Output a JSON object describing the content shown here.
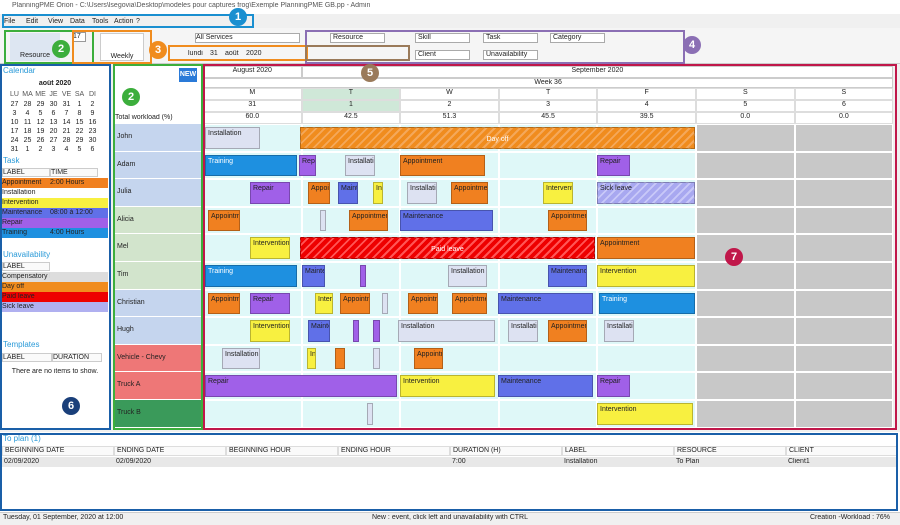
{
  "window": {
    "title": "PlanningPME Orion - C:\\Users\\lsegovia\\Desktop\\modeles pour captures frog\\Exemple PlanningPME GB.pp - Admin"
  },
  "menu": [
    "File",
    "Edit",
    "View",
    "Data",
    "Tools",
    "Action",
    "?"
  ],
  "toolbar": {
    "resource": "Resource",
    "weekly": "Weekly",
    "spin": "17",
    "services": "All Services",
    "date_day": "lundi",
    "date_num": "31",
    "date_month": "août",
    "date_year": "2020",
    "filters": [
      "Resource",
      "Skill",
      "Task",
      "Category",
      "Client",
      "Unavailability"
    ]
  },
  "callouts": [
    "1",
    "2",
    "2",
    "3",
    "4",
    "5",
    "6",
    "7"
  ],
  "calendar": {
    "title": "Calendar",
    "month": "août 2020",
    "days": [
      "LU",
      "MA",
      "ME",
      "JE",
      "VE",
      "SA",
      "DI"
    ],
    "weeks": [
      [
        27,
        28,
        29,
        30,
        31,
        1,
        2
      ],
      [
        3,
        4,
        5,
        6,
        7,
        8,
        9
      ],
      [
        10,
        11,
        12,
        13,
        14,
        15,
        16
      ],
      [
        17,
        18,
        19,
        20,
        21,
        22,
        23
      ],
      [
        24,
        25,
        26,
        27,
        28,
        29,
        30
      ],
      [
        31,
        1,
        2,
        3,
        4,
        5,
        6
      ]
    ]
  },
  "task_panel": {
    "title": "Task",
    "columns": [
      "LABEL",
      "TIME"
    ],
    "rows": [
      [
        "Appointment",
        "2:00 Hours"
      ],
      [
        "Installation"
      ],
      [
        "Intervention"
      ],
      [
        "Maintenance",
        "08:00 à 12:00"
      ],
      [
        "Repair"
      ],
      [
        "Training",
        "4:00 Hours"
      ]
    ]
  },
  "unavailability_panel": {
    "title": "Unavailability",
    "columns": [
      "LABEL"
    ],
    "rows": [
      "Compensatory leave",
      "Day off",
      "Paid leave",
      "Sick leave"
    ]
  },
  "templates_panel": {
    "title": "Templates",
    "columns": [
      "LABEL",
      "DURATION"
    ],
    "empty": "There are no items to show."
  },
  "planning": {
    "new": "NEW",
    "months": [
      "August 2020",
      "September 2020"
    ],
    "week": "Week 36",
    "day_letters": [
      "M",
      "T",
      "W",
      "T",
      "F",
      "S",
      "S"
    ],
    "day_numbers": [
      31,
      1,
      2,
      3,
      4,
      5,
      6
    ],
    "workload_label": "Total workload (%)",
    "workload": [
      "60.0",
      "42.5",
      "51.3",
      "45.5",
      "39.5",
      "0.0",
      "0.0"
    ],
    "resources": [
      "John",
      "Adam",
      "Julia",
      "Alicia",
      "Mel",
      "Tim",
      "Christian",
      "Hugh",
      "Vehicle - Chevy",
      "Truck A",
      "Truck B"
    ],
    "events": [
      "Installation",
      "Day off",
      "Training",
      "Repair",
      "Installation",
      "Appointment",
      "Repair",
      "Repair",
      "Appointment",
      "Maintenance",
      "Intervention",
      "Installation",
      "Appointment",
      "Intervention",
      "Sick leave",
      "Appointment",
      "Appointment",
      "Maintenance",
      "Appointment",
      "Intervention",
      "Paid leave",
      "Appointment",
      "Training",
      "Maintenance",
      "Installation",
      "Maintenance",
      "Intervention",
      "Appointment (Client1)",
      "Repair",
      "Intervention",
      "Appointment",
      "Appointment",
      "Appointment",
      "Maintenance",
      "Training",
      "Intervention",
      "Maintenance",
      "Installation",
      "Installation",
      "Appointment",
      "Installation",
      "Installation",
      "Intervention",
      "Appointment",
      "Repair",
      "Intervention",
      "Maintenance",
      "Repair",
      "Intervention"
    ]
  },
  "to_plan": {
    "title": "To plan (1)",
    "columns": [
      "BEGINNING DATE",
      "ENDING DATE",
      "BEGINNING HOUR",
      "ENDING HOUR",
      "DURATION (H)",
      "LABEL",
      "RESOURCE",
      "CLIENT"
    ],
    "row": {
      "0": "02/09/2020",
      "1": "02/09/2020",
      "4": "7:00",
      "5": "Installation",
      "6": "To Plan",
      "7": "Client1"
    }
  },
  "status": {
    "left": "Tuesday, 01 September, 2020 at 12:00",
    "center": "New : event, click left and unavailability with CTRL",
    "right": "Creation -Workload : 76%"
  }
}
